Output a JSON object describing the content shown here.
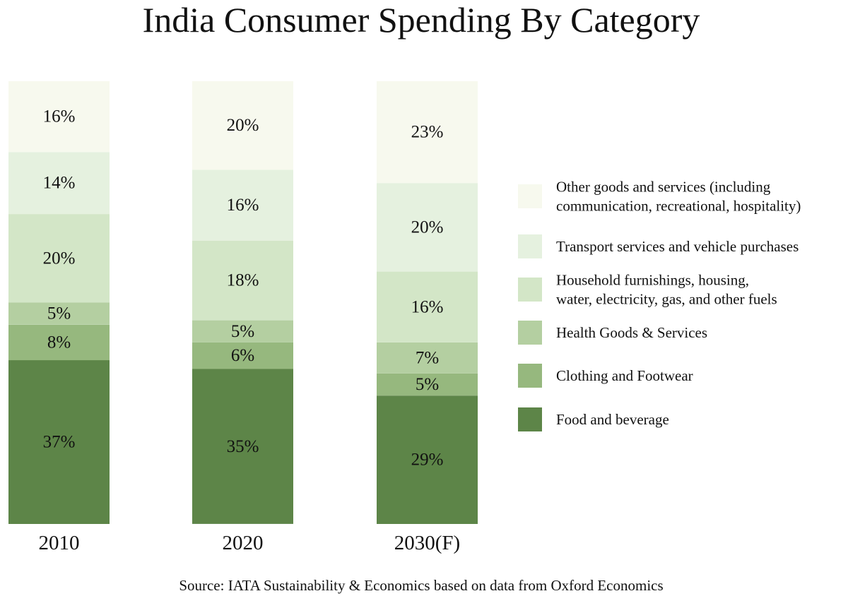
{
  "chart_data": {
    "type": "stacked-bar",
    "title": "India Consumer Spending By Category",
    "source": "Source: IATA Sustainability & Economics based on data from Oxford Economics",
    "categories": [
      "2010",
      "2020",
      "2030(F)"
    ],
    "series": [
      {
        "name": "Food and beverage",
        "name_lines": [
          "Food and beverage"
        ],
        "color": "#5d8548",
        "values": [
          37,
          35,
          29
        ],
        "labels": [
          "37%",
          "35%",
          "29%"
        ]
      },
      {
        "name": "Clothing and Footwear",
        "name_lines": [
          "Clothing and Footwear"
        ],
        "color": "#96b87e",
        "values": [
          8,
          6,
          5
        ],
        "labels": [
          "8%",
          "6%",
          "5%"
        ]
      },
      {
        "name": "Health Goods & Services",
        "name_lines": [
          "Health Goods & Services"
        ],
        "color": "#b4cfa1",
        "values": [
          5,
          5,
          7
        ],
        "labels": [
          "5%",
          "5%",
          "7%"
        ]
      },
      {
        "name": "Household furnishings, housing, water, electricity, gas, and other fuels",
        "name_lines": [
          "Household furnishings, housing,",
          "water, electricity, gas, and other fuels"
        ],
        "color": "#d3e6c7",
        "values": [
          20,
          18,
          16
        ],
        "labels": [
          "20%",
          "18%",
          "16%"
        ]
      },
      {
        "name": "Transport services and vehicle purchases",
        "name_lines": [
          "Transport services and vehicle purchases"
        ],
        "color": "#e5f1df",
        "values": [
          14,
          16,
          20
        ],
        "labels": [
          "14%",
          "16%",
          "20%"
        ]
      },
      {
        "name": "Other goods and services (including communication, recreational, hospitality)",
        "name_lines": [
          "Other goods and services (including",
          "communication, recreational, hospitality)"
        ],
        "color": "#f7f9ee",
        "values": [
          16,
          20,
          23
        ],
        "labels": [
          "16%",
          "20%",
          "23%"
        ]
      }
    ],
    "legend": "right",
    "grid": false
  }
}
